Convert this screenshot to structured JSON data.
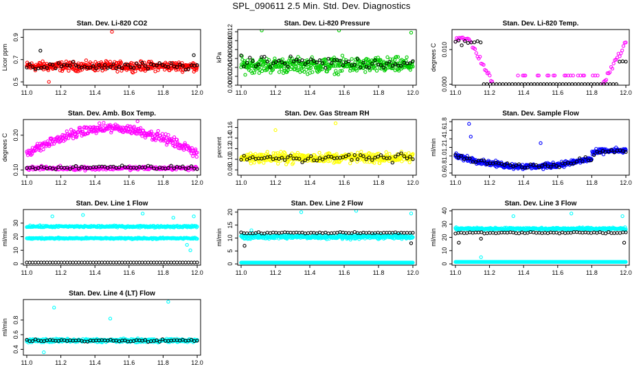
{
  "page": {
    "title": "SPL_090611  2.5 Min. Std. Dev. Diagnostics"
  },
  "chart_data": [
    {
      "id": "co2",
      "type": "scatter",
      "title": "Stan. Dev. Li-820 CO2",
      "xlabel": "",
      "ylabel": "Licor ppm",
      "xlim": [
        10.98,
        12.02
      ],
      "ylim": [
        0.47,
        0.97
      ],
      "xticks": [
        "11.0",
        "11.2",
        "11.4",
        "11.6",
        "11.8",
        "12.0"
      ],
      "xtick_values": [
        11.0,
        11.2,
        11.4,
        11.6,
        11.8,
        12.0
      ],
      "yticks": [
        "0.5",
        "0.7",
        "0.9"
      ],
      "ytick_values": [
        0.5,
        0.7,
        0.9
      ],
      "series": [
        {
          "color": "#ff0000",
          "pattern": "band",
          "mean": 0.64,
          "spread": 0.06,
          "points": 420,
          "outliers": [
            [
              11.5,
              0.95
            ],
            [
              11.13,
              0.5
            ]
          ]
        },
        {
          "color": "#000000",
          "pattern": "band",
          "mean": 0.64,
          "spread": 0.05,
          "points": 60,
          "outliers": [
            [
              11.08,
              0.78
            ],
            [
              11.98,
              0.74
            ]
          ]
        }
      ]
    },
    {
      "id": "pressure",
      "type": "scatter",
      "title": "Stan. Dev. Li-820 Pressure",
      "ylabel": "kPa",
      "xlim": [
        10.98,
        12.02
      ],
      "ylim": [
        0.0,
        0.0125
      ],
      "xticks": [
        "11.0",
        "11.2",
        "11.4",
        "11.6",
        "11.8",
        "12.0"
      ],
      "xtick_values": [
        11.0,
        11.2,
        11.4,
        11.6,
        11.8,
        12.0
      ],
      "yticks": [
        "0.000",
        "0.002",
        "0.004",
        "0.006",
        "0.008",
        "0.010",
        "0.012"
      ],
      "ytick_values": [
        0.0,
        0.002,
        0.004,
        0.006,
        0.008,
        0.01,
        0.012
      ],
      "series": [
        {
          "color": "#00cc00",
          "pattern": "band",
          "mean": 0.0045,
          "spread": 0.0025,
          "points": 420,
          "outliers": [
            [
              11.12,
              0.0123
            ],
            [
              11.57,
              0.0123
            ],
            [
              11.99,
              0.0118
            ]
          ]
        },
        {
          "color": "#000000",
          "pattern": "band",
          "mean": 0.005,
          "spread": 0.002,
          "points": 60,
          "outliers": []
        }
      ]
    },
    {
      "id": "temp",
      "type": "scatter",
      "title": "Stan. Dev. Li-820 Temp.",
      "ylabel": "degrees C",
      "xlim": [
        10.98,
        12.02
      ],
      "ylim": [
        -0.0003,
        0.0158
      ],
      "xticks": [
        "11.0",
        "11.2",
        "11.4",
        "11.6",
        "11.8",
        "12.0"
      ],
      "xtick_values": [
        11.0,
        11.2,
        11.4,
        11.6,
        11.8,
        12.0
      ],
      "yticks": [
        "0.000",
        "0.010"
      ],
      "ytick_values": [
        0.0,
        0.01
      ],
      "series": [
        {
          "color": "#ff00ff",
          "pattern": "temp",
          "points": 140,
          "outliers": []
        },
        {
          "color": "#000000",
          "pattern": "temp0",
          "points": 55,
          "outliers": []
        }
      ]
    },
    {
      "id": "box",
      "type": "scatter",
      "title": "Stan. Dev. Amb. Box Temp.",
      "ylabel": "degrees C",
      "xlim": [
        10.98,
        12.02
      ],
      "ylim": [
        0.085,
        0.245
      ],
      "xticks": [
        "11.0",
        "11.2",
        "11.4",
        "11.6",
        "11.8",
        "12.0"
      ],
      "xtick_values": [
        11.0,
        11.2,
        11.4,
        11.6,
        11.8,
        12.0
      ],
      "yticks": [
        "0.10",
        "0.20"
      ],
      "ytick_values": [
        0.1,
        0.2
      ],
      "series": [
        {
          "color": "#ff00ff",
          "pattern": "arch",
          "points": 320,
          "outliers": [
            [
              11.65,
              0.24
            ]
          ]
        },
        {
          "color": "#ff00ff",
          "pattern": "band",
          "mean": 0.105,
          "spread": 0.008,
          "points": 220,
          "outliers": []
        },
        {
          "color": "#000000",
          "pattern": "band",
          "mean": 0.107,
          "spread": 0.008,
          "points": 60,
          "outliers": []
        }
      ]
    },
    {
      "id": "rh",
      "type": "scatter",
      "title": "Stan. Dev. Gas Stream RH",
      "ylabel": "percent",
      "xlim": [
        10.98,
        12.02
      ],
      "ylim": [
        0.07,
        0.175
      ],
      "xticks": [
        "11.0",
        "11.2",
        "11.4",
        "11.6",
        "11.8",
        "12.0"
      ],
      "xtick_values": [
        11.0,
        11.2,
        11.4,
        11.6,
        11.8,
        12.0
      ],
      "yticks": [
        "0.08",
        "0.10",
        "0.12",
        "0.14",
        "0.16"
      ],
      "ytick_values": [
        0.08,
        0.1,
        0.12,
        0.14,
        0.16
      ],
      "series": [
        {
          "color": "#ffff00",
          "pattern": "band",
          "mean": 0.103,
          "spread": 0.014,
          "points": 420,
          "outliers": [
            [
              11.55,
              0.168
            ],
            [
              11.2,
              0.155
            ]
          ]
        },
        {
          "color": "#000000",
          "pattern": "band",
          "mean": 0.103,
          "spread": 0.012,
          "points": 60,
          "outliers": []
        }
      ]
    },
    {
      "id": "flow",
      "type": "scatter",
      "title": "Stan. Dev. Sample Flow",
      "ylabel": "ml/min",
      "xlim": [
        10.98,
        12.02
      ],
      "ylim": [
        0.55,
        1.85
      ],
      "xticks": [
        "11.0",
        "11.2",
        "11.4",
        "11.6",
        "11.8",
        "12.0"
      ],
      "xtick_values": [
        11.0,
        11.2,
        11.4,
        11.6,
        11.8,
        12.0
      ],
      "yticks": [
        "0.6",
        "0.8",
        "1.0",
        "1.2",
        "1.4",
        "1.6",
        "1.8"
      ],
      "ytick_values": [
        0.6,
        0.8,
        1.0,
        1.2,
        1.4,
        1.6,
        1.8
      ],
      "series": [
        {
          "color": "#0000ff",
          "pattern": "flow",
          "points": 420,
          "outliers": [
            [
              11.08,
              1.75
            ],
            [
              11.09,
              1.45
            ],
            [
              11.5,
              1.3
            ],
            [
              11.97,
              1.1
            ]
          ]
        },
        {
          "color": "#000000",
          "pattern": "flow",
          "points": 60,
          "outliers": []
        }
      ]
    },
    {
      "id": "line1",
      "type": "scatter",
      "title": "Stan. Dev. Line 1 Flow",
      "ylabel": "ml/min",
      "xlim": [
        10.98,
        12.02
      ],
      "ylim": [
        -1,
        40
      ],
      "xticks": [
        "11.0",
        "11.2",
        "11.4",
        "11.6",
        "11.8",
        "12.0"
      ],
      "xtick_values": [
        11.0,
        11.2,
        11.4,
        11.6,
        11.8,
        12.0
      ],
      "yticks": [
        "0",
        "10",
        "20",
        "30"
      ],
      "ytick_values": [
        0,
        10,
        20,
        30
      ],
      "series": [
        {
          "color": "#00ffff",
          "pattern": "band",
          "mean": 27.5,
          "spread": 1.0,
          "points": 260,
          "outliers": [
            [
              11.15,
              35
            ],
            [
              11.33,
              36
            ],
            [
              11.68,
              37
            ],
            [
              11.86,
              34
            ],
            [
              11.98,
              35
            ]
          ]
        },
        {
          "color": "#00ffff",
          "pattern": "band",
          "mean": 18.8,
          "spread": 0.8,
          "points": 260,
          "outliers": [
            [
              11.94,
              14
            ],
            [
              11.96,
              10
            ]
          ]
        },
        {
          "color": "#000000",
          "pattern": "flat",
          "mean": 1.0,
          "points": 60,
          "outliers": []
        }
      ]
    },
    {
      "id": "line2",
      "type": "scatter",
      "title": "Stan. Dev. Line 2 Flow",
      "ylabel": "ml/min",
      "xlim": [
        10.98,
        12.02
      ],
      "ylim": [
        -0.5,
        21
      ],
      "xticks": [
        "11.0",
        "11.2",
        "11.4",
        "11.6",
        "11.8",
        "12.0"
      ],
      "xtick_values": [
        11.0,
        11.2,
        11.4,
        11.6,
        11.8,
        12.0
      ],
      "yticks": [
        "0",
        "5",
        "10",
        "15",
        "20"
      ],
      "ytick_values": [
        0,
        5,
        10,
        15,
        20
      ],
      "series": [
        {
          "color": "#00ffff",
          "pattern": "band",
          "mean": 10.5,
          "spread": 1.2,
          "points": 420,
          "outliers": [
            [
              11.35,
              20
            ],
            [
              11.67,
              20.5
            ],
            [
              11.99,
              19.5
            ],
            [
              11.06,
              13
            ]
          ]
        },
        {
          "color": "#00ffff",
          "pattern": "flat",
          "mean": 0.5,
          "points": 300,
          "outliers": []
        },
        {
          "color": "#000000",
          "pattern": "band",
          "mean": 12.0,
          "spread": 0.4,
          "points": 60,
          "outliers": [
            [
              11.02,
              7
            ],
            [
              11.99,
              8
            ]
          ]
        }
      ]
    },
    {
      "id": "line3",
      "type": "scatter",
      "title": "Stan. Dev. Line 3 Flow",
      "ylabel": "ml/min",
      "xlim": [
        10.98,
        12.02
      ],
      "ylim": [
        -1,
        41
      ],
      "xticks": [
        "11.0",
        "11.2",
        "11.4",
        "11.6",
        "11.8",
        "12.0"
      ],
      "xtick_values": [
        11.0,
        11.2,
        11.4,
        11.6,
        11.8,
        12.0
      ],
      "yticks": [
        "0",
        "10",
        "20",
        "30",
        "40"
      ],
      "ytick_values": [
        0,
        10,
        20,
        30,
        40
      ],
      "series": [
        {
          "color": "#00ffff",
          "pattern": "band",
          "mean": 26.5,
          "spread": 1.3,
          "points": 420,
          "outliers": [
            [
              11.34,
              36
            ],
            [
              11.68,
              38
            ],
            [
              11.98,
              36
            ],
            [
              11.15,
              5
            ]
          ]
        },
        {
          "color": "#00ffff",
          "pattern": "flat",
          "mean": 1.5,
          "points": 300,
          "outliers": []
        },
        {
          "color": "#000000",
          "pattern": "band",
          "mean": 23.5,
          "spread": 0.8,
          "points": 60,
          "outliers": [
            [
              11.02,
              16
            ],
            [
              11.99,
              16
            ],
            [
              11.15,
              19
            ]
          ]
        }
      ]
    },
    {
      "id": "line4",
      "type": "scatter",
      "title": "Stan. Dev. Line 4 (LT) Flow",
      "ylabel": "ml/min",
      "xlim": [
        10.98,
        12.02
      ],
      "ylim": [
        0.32,
        1.08
      ],
      "xticks": [
        "11.0",
        "11.2",
        "11.4",
        "11.6",
        "11.8",
        "12.0"
      ],
      "xtick_values": [
        11.0,
        11.2,
        11.4,
        11.6,
        11.8,
        12.0
      ],
      "yticks": [
        "0.4",
        "0.6",
        "0.8"
      ],
      "ytick_values": [
        0.4,
        0.6,
        0.8
      ],
      "series": [
        {
          "color": "#00ffff",
          "pattern": "band",
          "mean": 0.52,
          "spread": 0.035,
          "points": 420,
          "outliers": [
            [
              11.16,
              0.97
            ],
            [
              11.49,
              0.82
            ],
            [
              11.83,
              1.05
            ],
            [
              11.1,
              0.36
            ]
          ]
        },
        {
          "color": "#000000",
          "pattern": "band",
          "mean": 0.52,
          "spread": 0.025,
          "points": 60,
          "outliers": []
        }
      ]
    }
  ]
}
